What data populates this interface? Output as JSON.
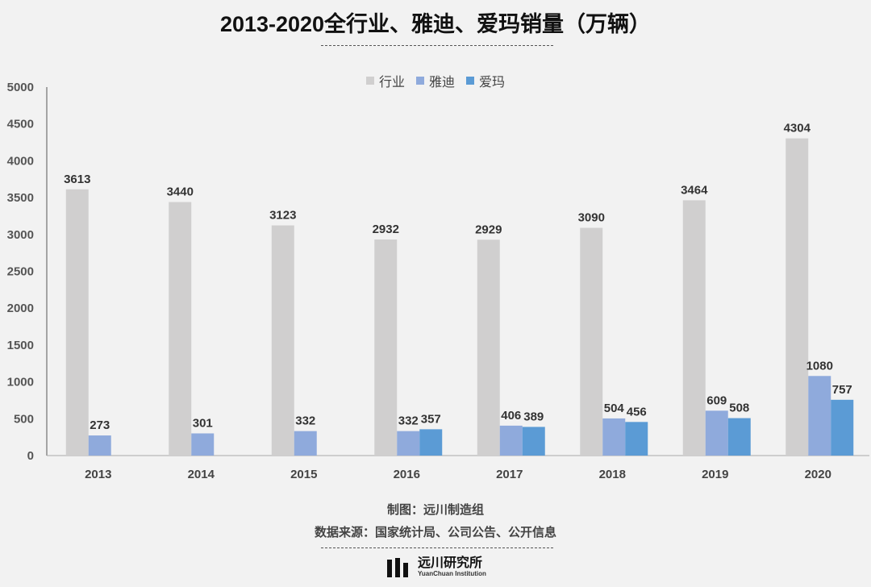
{
  "title": "2013-2020全行业、雅迪、爱玛销量（万辆）",
  "credit_maker": "制图：远川制造组",
  "credit_source": "数据来源：国家统计局、公司公告、公开信息",
  "logo": {
    "name_cn": "远川研究所",
    "name_en": "YuanChuan Institution"
  },
  "colors": {
    "industry": "#d0cfcf",
    "yadea": "#8faadc",
    "aima": "#5b9bd5",
    "background": "#f2f2f2"
  },
  "chart_data": {
    "type": "bar",
    "title": "2013-2020全行业、雅迪、爱玛销量（万辆）",
    "categories": [
      "2013",
      "2014",
      "2015",
      "2016",
      "2017",
      "2018",
      "2019",
      "2020"
    ],
    "series": [
      {
        "name": "行业",
        "values": [
          3613,
          3440,
          3123,
          2932,
          2929,
          3090,
          3464,
          4304
        ]
      },
      {
        "name": "雅迪",
        "values": [
          273,
          301,
          332,
          332,
          406,
          504,
          609,
          1080
        ]
      },
      {
        "name": "爱玛",
        "values": [
          null,
          null,
          null,
          357,
          389,
          456,
          508,
          757
        ]
      }
    ],
    "ylim": [
      0,
      5000
    ],
    "yticks": [
      0,
      500,
      1000,
      1500,
      2000,
      2500,
      3000,
      3500,
      4000,
      4500,
      5000
    ],
    "grid": false,
    "legend_position": "top-center",
    "xlabel": "",
    "ylabel": ""
  }
}
